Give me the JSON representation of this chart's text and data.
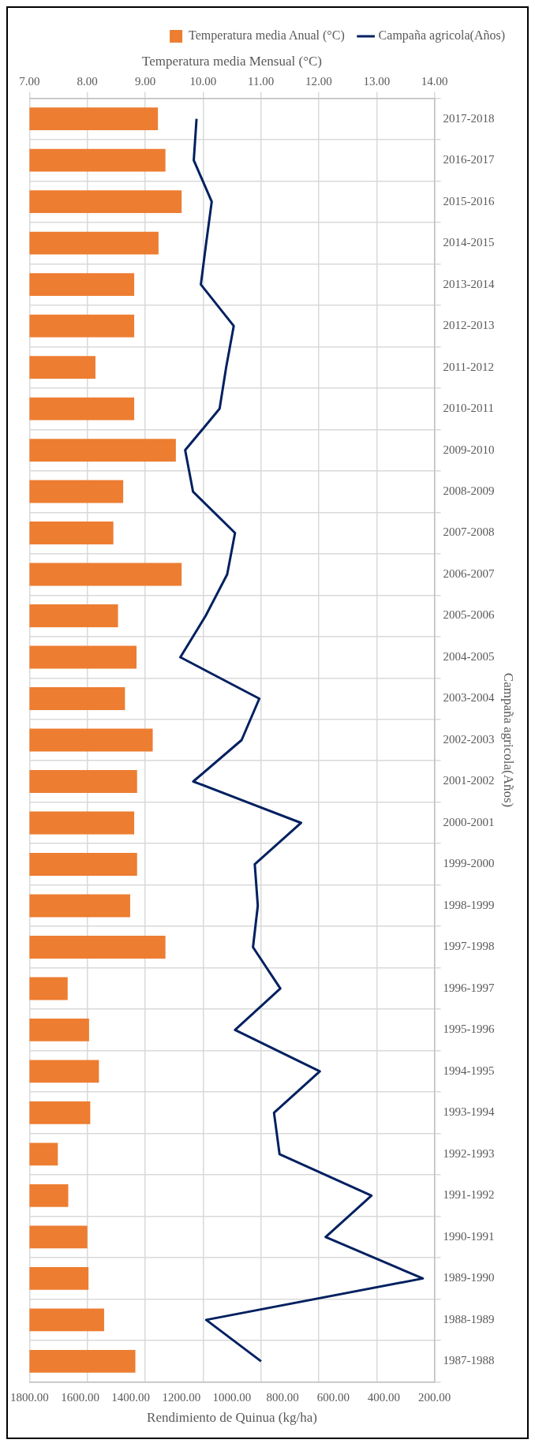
{
  "chart_data": {
    "type": "bar",
    "orientation": "horizontal",
    "xlabel": "Temperatura media Mensual (°C)",
    "x2label": "Rendimiento de Quinua (kg/ha)",
    "ylabel": "Campaña agricola(Años)",
    "categories": [
      "2017-2018",
      "2016-2017",
      "2015-2016",
      "2014-2015",
      "2013-2014",
      "2012-2013",
      "2011-2012",
      "2010-2011",
      "2009-2010",
      "2008-2009",
      "2007-2008",
      "2006-2007",
      "2005-2006",
      "2004-2005",
      "2003-2004",
      "2002-2003",
      "2001-2002",
      "2000-2001",
      "1999-2000",
      "1998-1999",
      "1997-1998",
      "1996-1997",
      "1995-1996",
      "1994-1995",
      "1993-1994",
      "1992-1993",
      "1991-1992",
      "1990-1991",
      "1989-1990",
      "1988-1989",
      "1987-1988"
    ],
    "series": [
      {
        "name": "Temperatura media Anual (°C)",
        "color": "#ed7d31",
        "values": [
          9.22,
          9.35,
          9.63,
          9.23,
          8.81,
          8.81,
          8.14,
          8.81,
          9.53,
          8.62,
          8.45,
          9.63,
          8.53,
          8.85,
          8.65,
          9.13,
          8.86,
          8.81,
          8.86,
          8.74,
          9.35,
          7.66,
          8.03,
          8.2,
          8.05,
          7.49,
          7.67,
          8.0,
          8.02,
          8.29,
          8.83
        ]
      },
      {
        "name": "Campaña agricola(Años)",
        "type": "line",
        "axis": "x2",
        "color": "#002060",
        "values": [
          1140,
          1151,
          1080,
          1102,
          1123,
          993,
          1023,
          1049,
          1185,
          1154,
          988,
          1019,
          1104,
          1204,
          892,
          962,
          1153,
          727,
          910,
          898,
          917,
          809,
          988,
          653,
          834,
          812,
          449,
          630,
          246,
          1102,
          885
        ]
      }
    ],
    "xlim": [
      7,
      14
    ],
    "xticks": [
      {
        "value": 7,
        "label": "7.00"
      },
      {
        "value": 8,
        "label": "8.00"
      },
      {
        "value": 9,
        "label": "9.00"
      },
      {
        "value": 10,
        "label": "10.00"
      },
      {
        "value": 11,
        "label": "11.00"
      },
      {
        "value": 12,
        "label": "12.00"
      },
      {
        "value": 13,
        "label": "13.00"
      },
      {
        "value": 14,
        "label": "14.00"
      }
    ],
    "x2lim": [
      1800,
      200
    ],
    "x2ticks": [
      {
        "value": 1800,
        "label": "1800.00"
      },
      {
        "value": 1600,
        "label": "1600.00"
      },
      {
        "value": 1400,
        "label": "1400.00"
      },
      {
        "value": 1200,
        "label": "1200.00"
      },
      {
        "value": 1000,
        "label": "1000.00"
      },
      {
        "value": 800,
        "label": "800.00"
      },
      {
        "value": 600,
        "label": "600.00"
      },
      {
        "value": 400,
        "label": "400.00"
      },
      {
        "value": 200,
        "label": "200.00"
      }
    ],
    "grid": true,
    "legend": "top right",
    "line_style": "solid",
    "marker": "none"
  }
}
